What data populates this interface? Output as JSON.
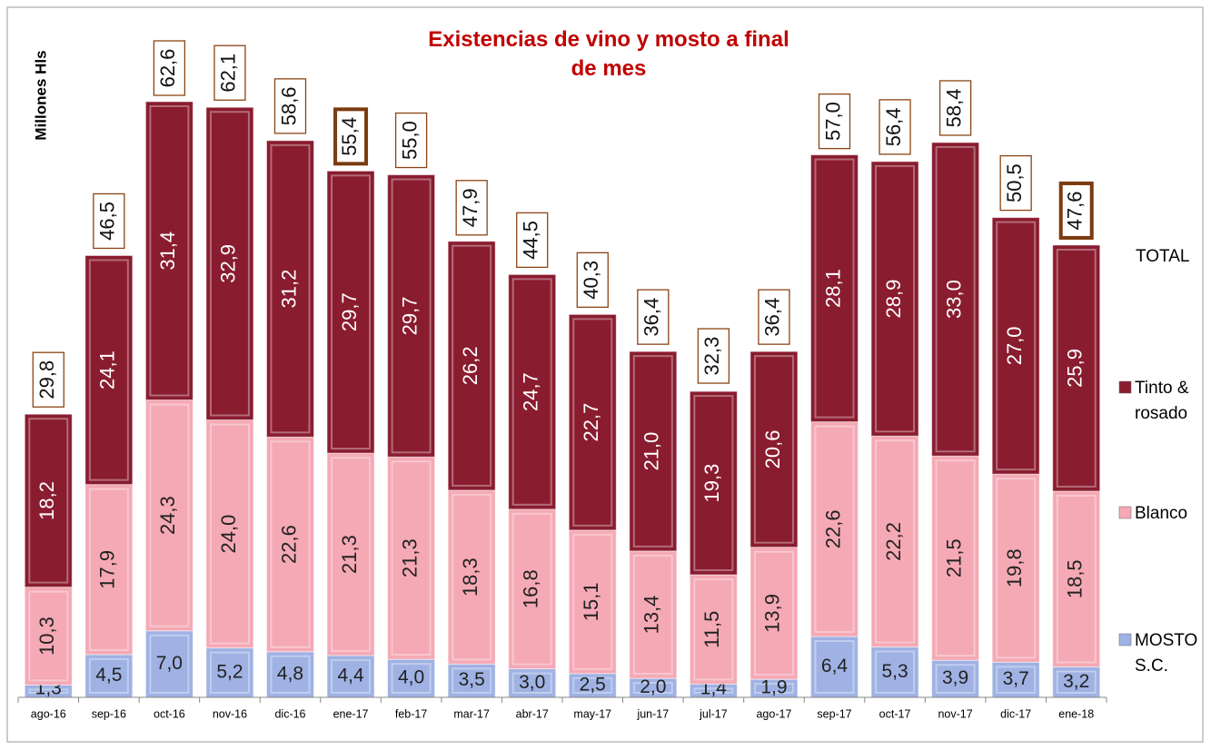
{
  "chart_data": {
    "type": "stacked_bar",
    "title": "Existencias de vino y mosto a final de mes",
    "y_label": "Millones Hls",
    "categories": [
      "ago-16",
      "sep-16",
      "oct-16",
      "nov-16",
      "dic-16",
      "ene-17",
      "feb-17",
      "mar-17",
      "abr-17",
      "may-17",
      "jun-17",
      "jul-17",
      "ago-17",
      "sep-17",
      "oct-17",
      "nov-17",
      "dic-17",
      "ene-18"
    ],
    "series": [
      {
        "name": "MOSTO S.C.",
        "color": "#9fb2e3",
        "values": [
          1.3,
          4.5,
          7.0,
          5.2,
          4.8,
          4.4,
          4.0,
          3.5,
          3.0,
          2.5,
          2.0,
          1.4,
          1.9,
          6.4,
          5.3,
          3.9,
          3.7,
          3.2
        ],
        "value_labels": [
          "1,3",
          "4,5",
          "7,0",
          "5,2",
          "4,8",
          "4,4",
          "4,0",
          "3,5",
          "3,0",
          "2,5",
          "2,0",
          "1,4",
          "1,9",
          "6,4",
          "5,3",
          "3,9",
          "3,7",
          "3,2"
        ]
      },
      {
        "name": "Blanco",
        "color": "#f5a9b5",
        "values": [
          10.3,
          17.9,
          24.3,
          24.0,
          22.6,
          21.3,
          21.3,
          18.3,
          16.8,
          15.1,
          13.4,
          11.5,
          13.9,
          22.6,
          22.2,
          21.5,
          19.8,
          18.5
        ],
        "value_labels": [
          "10,3",
          "17,9",
          "24,3",
          "24,0",
          "22,6",
          "21,3",
          "21,3",
          "18,3",
          "16,8",
          "15,1",
          "13,4",
          "11,5",
          "13,9",
          "22,6",
          "22,2",
          "21,5",
          "19,8",
          "18,5"
        ]
      },
      {
        "name": "Tinto & rosado",
        "color": "#8a1c30",
        "values": [
          18.2,
          24.1,
          31.4,
          32.9,
          31.2,
          29.7,
          29.7,
          26.2,
          24.7,
          22.7,
          21.0,
          19.3,
          20.6,
          28.1,
          28.9,
          33.0,
          27.0,
          25.9
        ],
        "value_labels": [
          "18,2",
          "24,1",
          "31,4",
          "32,9",
          "31,2",
          "29,7",
          "29,7",
          "26,2",
          "24,7",
          "22,7",
          "21,0",
          "19,3",
          "20,6",
          "28,1",
          "28,9",
          "33,0",
          "27,0",
          "25,9"
        ]
      }
    ],
    "totals": {
      "name": "TOTAL",
      "values": [
        29.8,
        46.5,
        62.6,
        62.1,
        58.6,
        55.4,
        55.0,
        47.9,
        44.5,
        40.3,
        36.4,
        32.3,
        36.4,
        57.0,
        56.4,
        58.4,
        50.5,
        47.6
      ],
      "value_labels": [
        "29,8",
        "46,5",
        "62,6",
        "62,1",
        "58,6",
        "55,4",
        "55,0",
        "47,9",
        "44,5",
        "40,3",
        "36,4",
        "32,3",
        "36,4",
        "57,0",
        "56,4",
        "58,4",
        "50,5",
        "47,6"
      ]
    },
    "highlight": [
      5,
      17
    ]
  }
}
